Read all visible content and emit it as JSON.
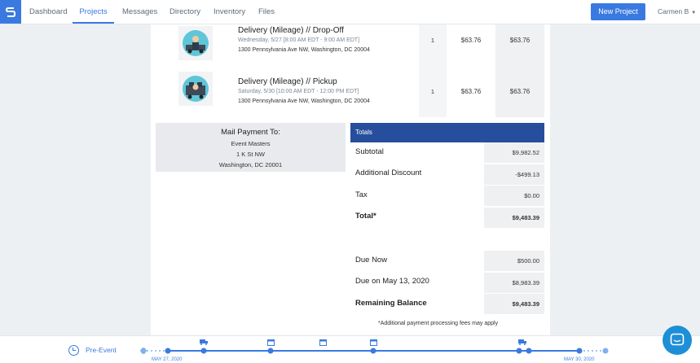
{
  "nav": {
    "items": [
      "Dashboard",
      "Projects",
      "Messages",
      "Directory",
      "Inventory",
      "Files"
    ],
    "active": "Projects",
    "new_project": "New Project",
    "user": "Carmen B"
  },
  "line_items": [
    {
      "title": "Delivery (Mileage) // Drop-Off",
      "when": "Wednesday, 5/27  [8:00 AM EDT - 9:00 AM EDT]",
      "address": "1300 Pennsylvania Ave NW, Washington, DC 20004",
      "qty": "1",
      "price": "$63.76",
      "total": "$63.76"
    },
    {
      "title": "Delivery (Mileage) // Pickup",
      "when": "Saturday, 5/30  [10:00 AM EDT - 12:00 PM EDT]",
      "address": "1300 Pennsylvania Ave NW, Washington, DC 20004",
      "qty": "1",
      "price": "$63.76",
      "total": "$63.76"
    }
  ],
  "mail": {
    "title": "Mail Payment To:",
    "lines": [
      "Event Masters",
      "1 K St NW",
      "Washington, DC 20001"
    ]
  },
  "totals": {
    "header": "Totals",
    "rows": [
      {
        "label": "Subtotal",
        "value": "$9,982.52"
      },
      {
        "label": "Additional Discount",
        "value": "-$499.13"
      },
      {
        "label": "Tax",
        "value": "$0.00"
      },
      {
        "label": "Total*",
        "value": "$9,483.39"
      }
    ],
    "payments": [
      {
        "label": "Due Now",
        "value": "$500.00"
      },
      {
        "label": "Due on May 13, 2020",
        "value": "$8,983.39"
      },
      {
        "label": "Remaining Balance",
        "value": "$9,483.39"
      }
    ],
    "footnote": "*Additional payment processing fees may apply"
  },
  "timeline": {
    "phase": "Pre-Event",
    "start_date": "MAY 27, 2020",
    "end_date": "MAY 30, 2020"
  },
  "colors": {
    "accent": "#3a7ae0",
    "totals_header": "#264e9c",
    "chat": "#1d8fd6"
  }
}
